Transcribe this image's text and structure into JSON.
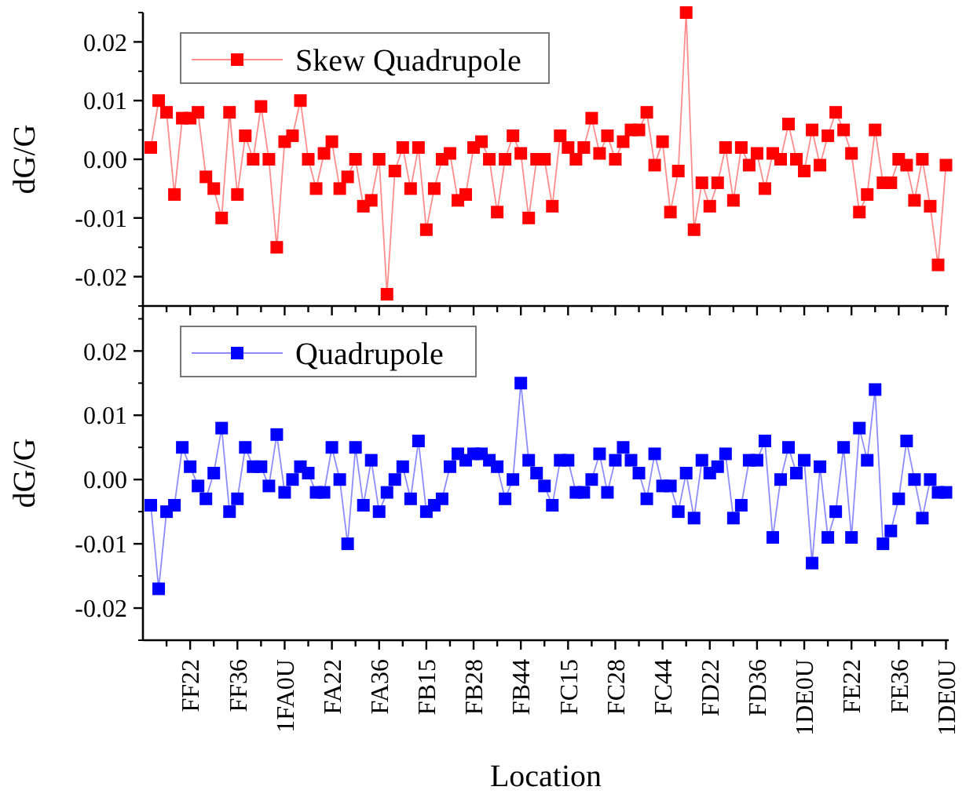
{
  "chart_data": [
    {
      "type": "line",
      "marker": "square",
      "legend": "top left",
      "tick_labels": "y",
      "ylabel": "dG/G",
      "ylim": [
        -0.025,
        0.025
      ],
      "yticks": [
        -0.02,
        -0.01,
        {
          "value": 0,
          "label": "0.00"
        },
        0.01,
        0.02
      ],
      "categories": [
        null,
        null,
        null,
        null,
        null,
        null,
        null,
        null,
        null,
        null,
        null,
        null,
        null,
        null,
        null,
        null,
        null,
        null,
        null,
        null,
        null,
        null,
        null,
        null,
        null,
        null,
        null,
        null,
        null,
        null,
        null,
        null,
        null,
        null,
        null,
        null,
        null,
        null,
        null,
        null,
        null,
        null,
        null,
        null,
        null,
        null,
        null,
        null,
        null,
        null,
        null,
        null,
        null,
        null,
        null,
        null,
        null,
        null,
        null,
        null,
        null,
        null,
        null,
        null,
        null,
        null,
        null,
        null,
        null,
        null,
        null,
        null,
        null,
        null,
        null,
        null,
        null,
        null,
        null,
        null,
        null,
        null,
        null,
        null,
        null,
        null,
        null,
        null,
        null,
        null,
        null,
        null,
        null,
        null,
        null,
        null,
        null,
        null,
        null,
        null,
        null,
        null
      ],
      "series": [
        {
          "name": "Skew Quadrupole",
          "color": "#ff0000",
          "values": [
            0.002,
            0.01,
            0.008,
            -0.006,
            0.007,
            0.007,
            0.008,
            -0.003,
            -0.005,
            -0.01,
            0.008,
            -0.006,
            0.004,
            0.0,
            0.009,
            0.0,
            -0.015,
            0.003,
            0.004,
            0.01,
            0.0,
            -0.005,
            0.001,
            0.003,
            -0.005,
            -0.003,
            0.0,
            -0.008,
            -0.007,
            0.0,
            -0.023,
            -0.002,
            0.002,
            -0.005,
            0.002,
            -0.012,
            -0.005,
            0.0,
            0.001,
            -0.007,
            -0.006,
            0.002,
            0.003,
            0.0,
            -0.009,
            0.0,
            0.004,
            0.001,
            -0.01,
            0.0,
            0.0,
            -0.008,
            0.004,
            0.002,
            0.0,
            0.002,
            0.007,
            0.001,
            0.004,
            0.0,
            0.003,
            0.005,
            0.005,
            0.008,
            -0.001,
            0.003,
            -0.009,
            -0.002,
            0.025,
            -0.012,
            -0.004,
            -0.008,
            -0.004,
            0.002,
            -0.007,
            0.002,
            -0.001,
            0.001,
            -0.005,
            0.001,
            0.0,
            0.006,
            0.0,
            -0.002,
            0.005,
            -0.001,
            0.004,
            0.008,
            0.005,
            0.001,
            -0.009,
            -0.006,
            0.005,
            -0.004,
            -0.004,
            0.0,
            -0.001,
            -0.007,
            0.0,
            -0.008,
            -0.018,
            -0.001
          ]
        }
      ]
    },
    {
      "type": "line",
      "marker": "square",
      "legend": "top left",
      "xlabel": "Location",
      "ylabel": "dG/G",
      "ylim": [
        -0.025,
        0.027
      ],
      "yticks": [
        -0.02,
        -0.01,
        {
          "value": 0,
          "label": "0.00"
        },
        0.01,
        0.02
      ],
      "categories": [
        null,
        null,
        null,
        null,
        null,
        "FF22",
        null,
        null,
        null,
        null,
        null,
        "FF36",
        null,
        null,
        null,
        null,
        null,
        "1FA0U",
        null,
        null,
        null,
        null,
        null,
        "FA22",
        null,
        null,
        null,
        null,
        null,
        "FA36",
        null,
        null,
        null,
        null,
        null,
        "FB15",
        null,
        null,
        null,
        null,
        null,
        "FB28",
        null,
        null,
        null,
        null,
        null,
        "FB44",
        null,
        null,
        null,
        null,
        null,
        "FC15",
        null,
        null,
        null,
        null,
        null,
        "FC28",
        null,
        null,
        null,
        null,
        null,
        "FC44",
        null,
        null,
        null,
        null,
        null,
        "FD22",
        null,
        null,
        null,
        null,
        null,
        "FD36",
        null,
        null,
        null,
        null,
        null,
        "1DE0U",
        null,
        null,
        null,
        null,
        null,
        "FE22",
        null,
        null,
        null,
        null,
        null,
        "FE36",
        null,
        null,
        null,
        null,
        null,
        "1DE0U"
      ],
      "series": [
        {
          "name": "Quadrupole",
          "color": "#0000ff",
          "values": [
            -0.004,
            -0.017,
            -0.005,
            -0.004,
            0.005,
            0.002,
            -0.001,
            -0.003,
            0.001,
            0.008,
            -0.005,
            -0.003,
            0.005,
            0.002,
            0.002,
            -0.001,
            0.007,
            -0.002,
            0.0,
            0.002,
            0.001,
            -0.002,
            -0.002,
            0.005,
            0.0,
            -0.01,
            0.005,
            -0.004,
            0.003,
            -0.005,
            -0.002,
            0.0,
            0.002,
            -0.003,
            0.006,
            -0.005,
            -0.004,
            -0.003,
            0.002,
            0.004,
            0.003,
            0.004,
            0.004,
            0.003,
            0.002,
            -0.003,
            0.0,
            0.015,
            0.003,
            0.001,
            -0.001,
            -0.004,
            0.003,
            0.003,
            -0.002,
            -0.002,
            0.0,
            0.004,
            -0.002,
            0.003,
            0.005,
            0.003,
            0.001,
            -0.003,
            0.004,
            -0.001,
            -0.001,
            -0.005,
            0.001,
            -0.006,
            0.003,
            0.001,
            0.002,
            0.004,
            -0.006,
            -0.004,
            0.003,
            0.003,
            0.006,
            -0.009,
            0.0,
            0.005,
            0.001,
            0.003,
            -0.013,
            0.002,
            -0.009,
            -0.005,
            0.005,
            -0.009,
            0.008,
            0.003,
            0.014,
            -0.01,
            -0.008,
            -0.003,
            0.006,
            0.0,
            -0.006,
            0.0,
            -0.002,
            -0.002
          ]
        }
      ]
    }
  ]
}
